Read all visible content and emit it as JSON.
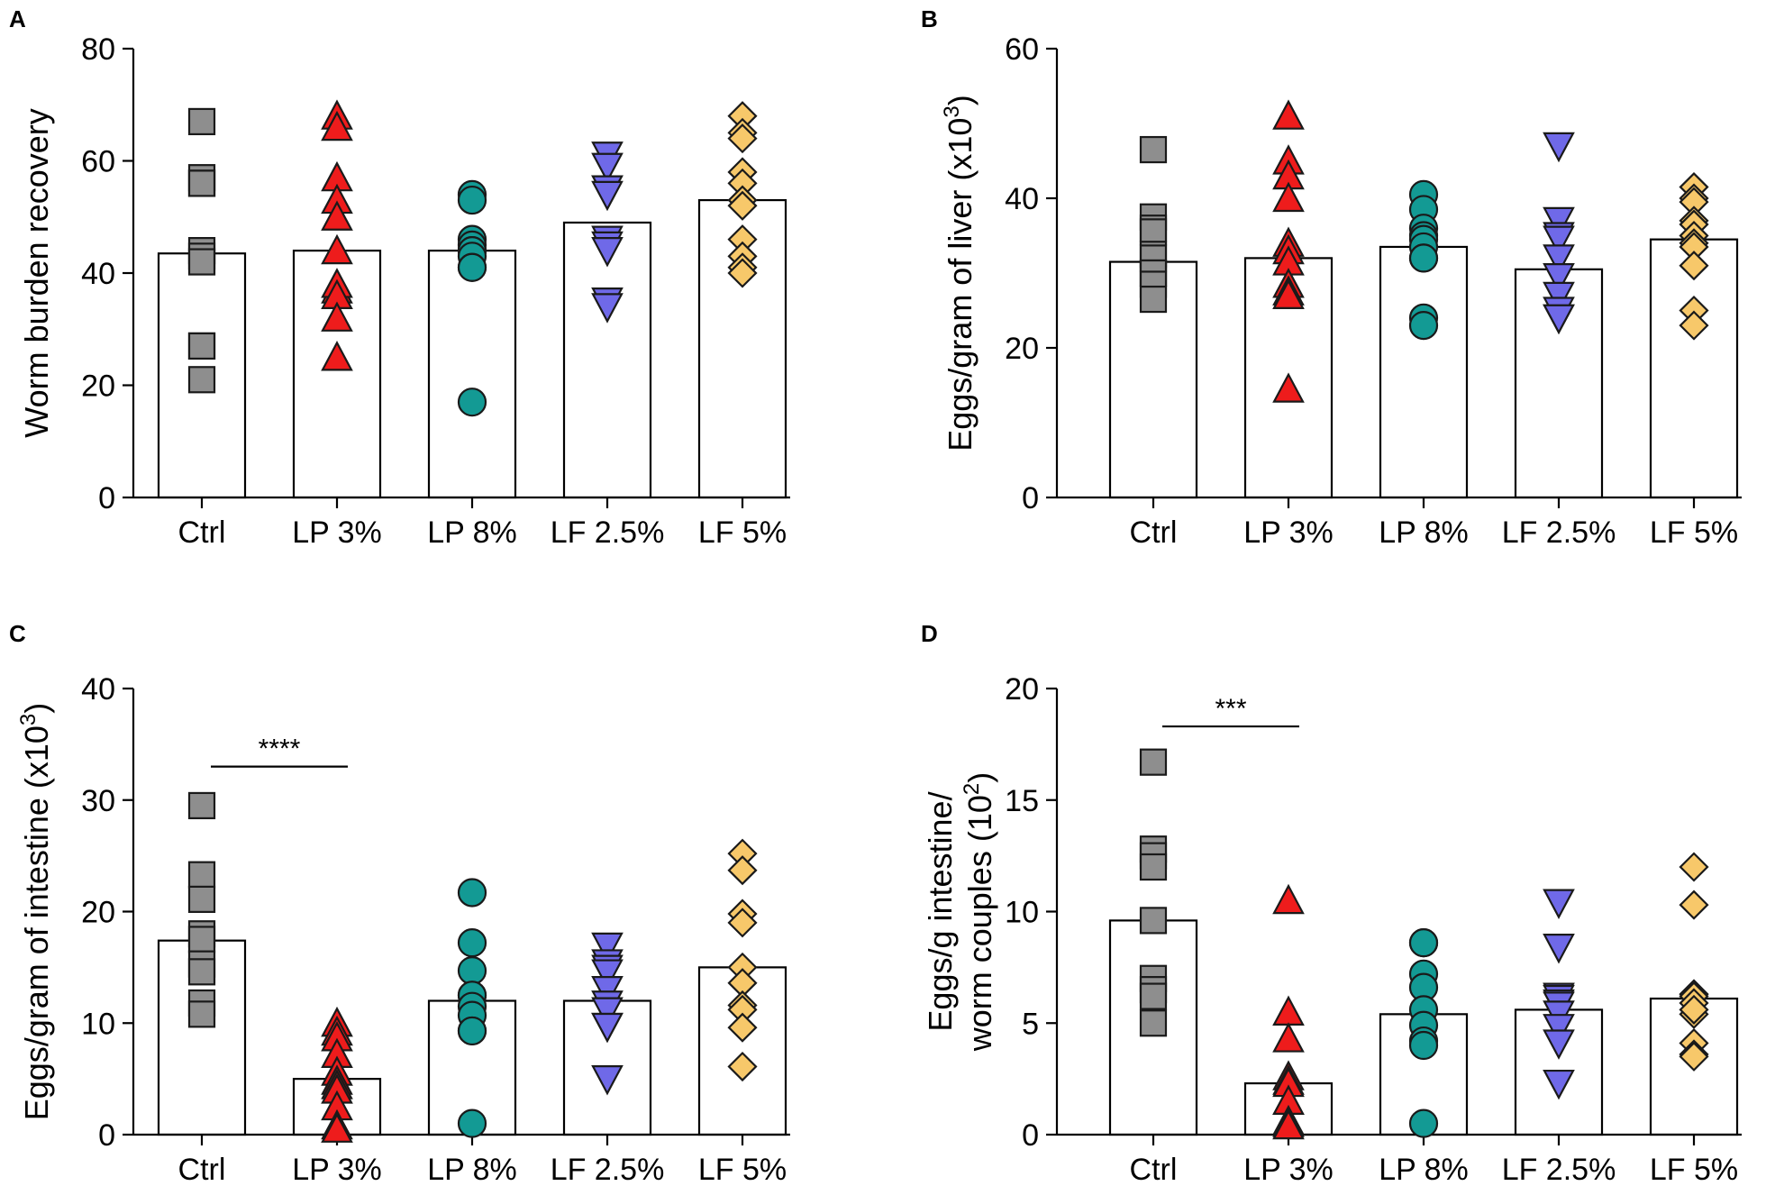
{
  "chart_data": [
    {
      "panel": "A",
      "type": "bar",
      "overlay": "scatter",
      "categories": [
        "Ctrl",
        "LP 3%",
        "LP 8%",
        "LF 2.5%",
        "LF 5%"
      ],
      "ylabel_lines": [
        "Worm burden recovery"
      ],
      "ylim": [
        0,
        80
      ],
      "yticks": [
        "0",
        "20",
        "40",
        "60",
        "80"
      ],
      "bar_values": [
        43.5,
        44,
        44,
        49,
        53
      ],
      "points": [
        [
          67,
          57,
          56,
          56,
          44,
          43,
          42,
          27,
          27,
          21
        ],
        [
          68,
          66,
          57,
          53,
          50,
          44,
          37,
          38,
          36,
          32,
          25
        ],
        [
          54,
          53,
          46,
          45,
          44,
          44,
          43,
          41,
          41,
          17
        ],
        [
          61,
          59,
          55,
          55,
          54,
          46,
          45,
          44,
          35,
          34
        ],
        [
          68,
          65,
          64,
          58,
          56,
          53,
          52,
          46,
          43,
          41,
          40
        ]
      ],
      "significance": null
    },
    {
      "panel": "B",
      "type": "bar",
      "overlay": "scatter",
      "categories": [
        "Ctrl",
        "LP 3%",
        "LP 8%",
        "LF 2.5%",
        "LF 5%"
      ],
      "ylabel_lines": [
        "Eggs/gram of liver (x10",
        "3",
        ")"
      ],
      "ylim": [
        0,
        60
      ],
      "yticks": [
        "0",
        "20",
        "40",
        "60"
      ],
      "bar_values": [
        31.5,
        32,
        33.5,
        30.5,
        34.5
      ],
      "points": [
        [
          46.5,
          37.5,
          36,
          35.5,
          32.5,
          32,
          30,
          30,
          28.5,
          26.5
        ],
        [
          51,
          45,
          43,
          40,
          34,
          33,
          31.5,
          28.5,
          27.5,
          27,
          14.5
        ],
        [
          40.5,
          38.5,
          36,
          35,
          34.5,
          33.5,
          32,
          32,
          24,
          23
        ],
        [
          47,
          37,
          35,
          34.5,
          32,
          29.5,
          27,
          25,
          24,
          24
        ],
        [
          41.5,
          40,
          39.5,
          37,
          36.5,
          35,
          34,
          33.5,
          31,
          25,
          23
        ]
      ],
      "significance": null
    },
    {
      "panel": "C",
      "type": "bar",
      "overlay": "scatter",
      "categories": [
        "Ctrl",
        "LP 3%",
        "LP 8%",
        "LF 2.5%",
        "LF 5%"
      ],
      "ylabel_lines": [
        "Eggs/gram of intestine (x10",
        "3",
        ")"
      ],
      "ylim": [
        0,
        40
      ],
      "yticks": [
        "0",
        "10",
        "20",
        "30",
        "40"
      ],
      "bar_values": [
        17.4,
        5,
        12,
        12,
        15
      ],
      "points": [
        [
          29.5,
          23.3,
          21.1,
          18,
          17.5,
          15.3,
          14.6,
          11.8,
          10.8
        ],
        [
          10,
          9.2,
          8.7,
          7.2,
          5.6,
          4.8,
          4.4,
          4,
          2.5,
          0.8,
          0.5
        ],
        [
          21.7,
          17.2,
          14.7,
          12.5,
          12.5,
          11.5,
          10.7,
          9.3,
          9.3,
          1
        ],
        [
          16.9,
          15.4,
          14.9,
          14.5,
          13,
          11.7,
          11.1,
          9.7,
          9.7,
          5
        ],
        [
          25.2,
          23.7,
          19.8,
          19,
          15,
          13.6,
          11.6,
          11.2,
          9.6,
          6.1
        ]
      ],
      "significance": {
        "from": 0,
        "to": 1,
        "y": 33,
        "label": "****"
      }
    },
    {
      "panel": "D",
      "type": "bar",
      "overlay": "scatter",
      "categories": [
        "Ctrl",
        "LP 3%",
        "LP 8%",
        "LF 2.5%",
        "LF 5%"
      ],
      "ylabel_lines": [
        "Eggs/g intestine/",
        "worm couples (10",
        "2",
        ")"
      ],
      "ylim": [
        0,
        20
      ],
      "yticks": [
        "0",
        "5",
        "10",
        "15",
        "20"
      ],
      "bar_values": [
        9.6,
        2.3,
        5.4,
        5.6,
        6.1
      ],
      "points": [
        [
          16.7,
          12.8,
          12.5,
          12,
          9.6,
          7,
          6.5,
          6.2,
          5
        ],
        [
          10.5,
          5.5,
          4.3,
          2.6,
          2.4,
          2.3,
          1.5,
          1.5,
          0.6,
          0.5,
          0.4
        ],
        [
          8.6,
          8.6,
          7.2,
          6.6,
          5.6,
          4.9,
          4.2,
          4,
          0.5
        ],
        [
          10.4,
          8.4,
          6.2,
          6.1,
          5.9,
          5.8,
          5.4,
          4.8,
          4.1,
          2.3
        ],
        [
          12,
          10.3,
          6.3,
          6.3,
          6.2,
          5.9,
          5.4,
          5.6,
          4.1,
          3.6,
          3.5
        ]
      ],
      "significance": {
        "from": 0,
        "to": 1,
        "y": 18.3,
        "label": "***"
      }
    }
  ],
  "group_styles": [
    {
      "marker": "square",
      "color": "#8e8e8e"
    },
    {
      "marker": "triangle-up",
      "color": "#ee1c1c"
    },
    {
      "marker": "circle",
      "color": "#139a94"
    },
    {
      "marker": "triangle-down",
      "color": "#6f69e8"
    },
    {
      "marker": "diamond",
      "color": "#f7c86a"
    }
  ]
}
